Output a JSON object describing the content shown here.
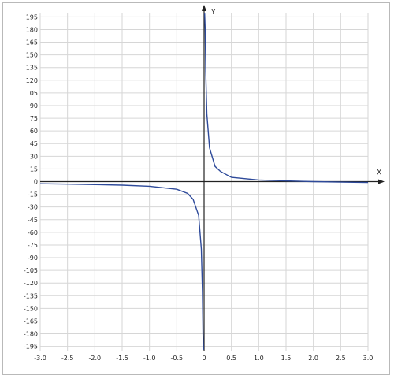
{
  "chart_data": {
    "type": "line",
    "title": "",
    "xlabel": "X",
    "ylabel": "Y",
    "xlim": [
      -3.0,
      3.0
    ],
    "ylim": [
      -200,
      200
    ],
    "grid": true,
    "x_ticks": [
      "-3.0",
      "-2.5",
      "-2.0",
      "-1.5",
      "-1.0",
      "-0.5",
      "0",
      "0.5",
      "1.0",
      "1.5",
      "2.0",
      "2.5",
      "3.0"
    ],
    "y_ticks": [
      "195",
      "180",
      "165",
      "150",
      "135",
      "120",
      "105",
      "90",
      "75",
      "60",
      "45",
      "30",
      "15",
      "0",
      "-15",
      "-30",
      "-45",
      "-60",
      "-75",
      "-90",
      "-105",
      "-120",
      "-135",
      "-150",
      "-165",
      "-180",
      "-195"
    ],
    "series": [
      {
        "color": "#2e4a9a",
        "x": [
          -3.0,
          -2.5,
          -2.0,
          -1.5,
          -1.0,
          -0.5,
          -0.3,
          -0.2,
          -0.1,
          -0.05,
          -0.03,
          -0.02,
          -0.01,
          0.01,
          0.02,
          0.03,
          0.05,
          0.1,
          0.2,
          0.3,
          0.5,
          1.0,
          1.5,
          2.0,
          2.5,
          3.0
        ],
        "y": [
          -2.5,
          -3.0,
          -3.5,
          -4.2,
          -5.5,
          -9,
          -14,
          -21,
          -40,
          -80,
          -130,
          -180,
          -199,
          199,
          180,
          130,
          80,
          40,
          18,
          12,
          5,
          2.0,
          0.8,
          0,
          -0.6,
          -1.0
        ]
      }
    ]
  }
}
